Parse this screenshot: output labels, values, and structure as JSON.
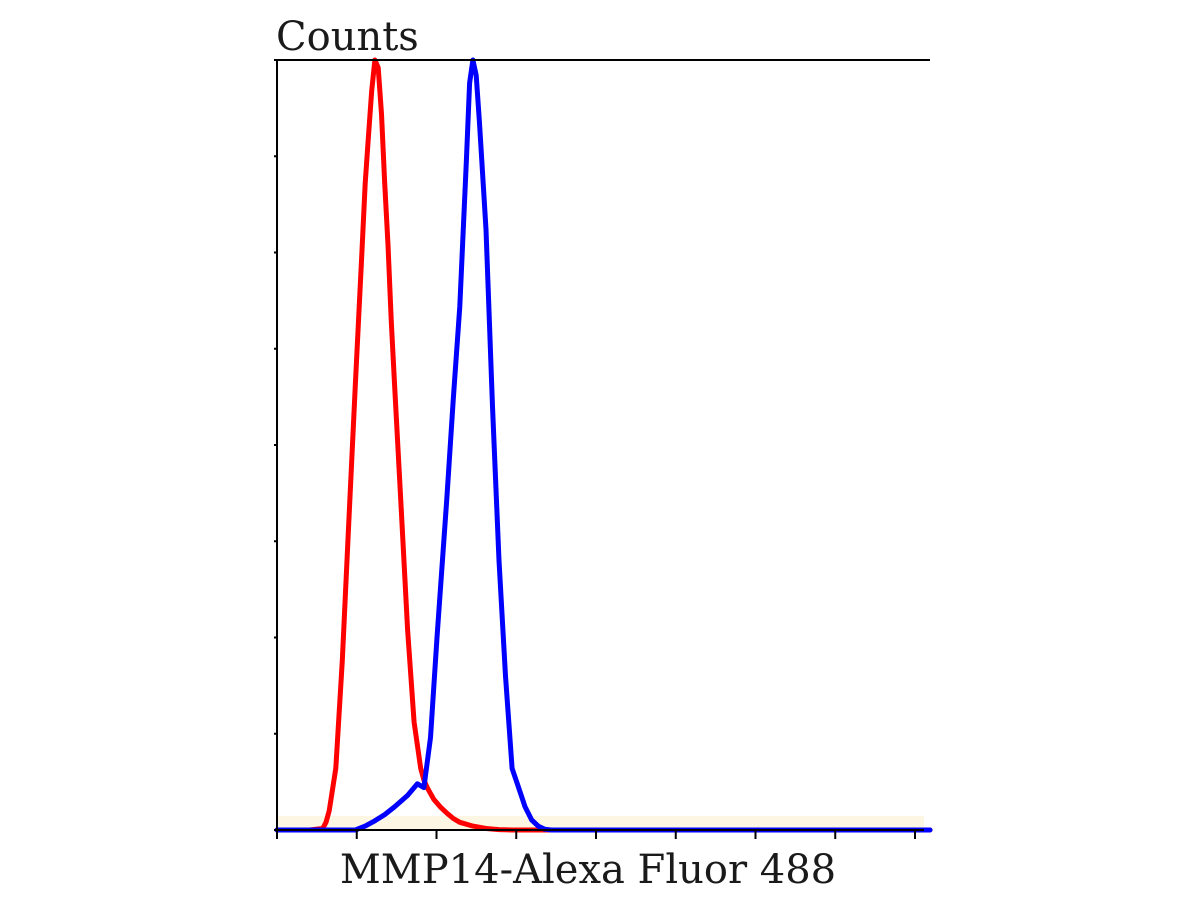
{
  "chart_data": {
    "type": "line",
    "title": "",
    "xlabel": "MMP14-Alexa Fluor 488",
    "ylabel": "Counts",
    "xlim": [
      0,
      100
    ],
    "ylim": [
      0,
      100
    ],
    "x_tick_count": 9,
    "y_tick_count": 9,
    "grid": false,
    "legend": "none",
    "colors": {
      "axis": "#000000",
      "background": "#ffffff",
      "baseline_band": "#fdf6e3"
    },
    "series": [
      {
        "color": "#ff0000",
        "x": [
          0,
          5,
          7,
          7.5,
          8,
          9,
          10,
          11,
          12,
          13,
          13.5,
          14,
          14.5,
          15,
          15.5,
          16,
          16.5,
          17,
          17.5,
          18,
          19,
          20,
          21,
          22,
          22.5,
          23,
          24,
          25,
          26,
          27,
          28,
          30,
          32,
          34,
          36,
          40,
          60,
          100
        ],
        "y": [
          0,
          0,
          0.2,
          1,
          2.5,
          8,
          22,
          40,
          58,
          75,
          84,
          90,
          96,
          100,
          99,
          93,
          84,
          76,
          66,
          58,
          42,
          26,
          14,
          8,
          6.5,
          5.5,
          4,
          3,
          2.2,
          1.5,
          1,
          0.5,
          0.2,
          0.05,
          0,
          0,
          0,
          0
        ]
      },
      {
        "color": "#0000ff",
        "x": [
          0,
          12,
          13.5,
          15,
          16.5,
          18,
          20,
          21.5,
          22.5,
          23.5,
          24.5,
          26,
          27,
          28,
          29,
          29.5,
          30,
          30.5,
          31,
          32,
          33,
          34,
          35,
          36,
          37,
          38,
          39,
          40,
          41,
          42,
          43,
          45,
          50,
          60,
          80,
          100
        ],
        "y": [
          0,
          0,
          0.5,
          1.2,
          2,
          3,
          4.5,
          6,
          5.5,
          12,
          25,
          43,
          56,
          68,
          87,
          97,
          100,
          98,
          92,
          78,
          55,
          35,
          20,
          8,
          5.5,
          3,
          1.3,
          0.5,
          0.1,
          0,
          0,
          0,
          0,
          0,
          0,
          0
        ]
      }
    ]
  }
}
